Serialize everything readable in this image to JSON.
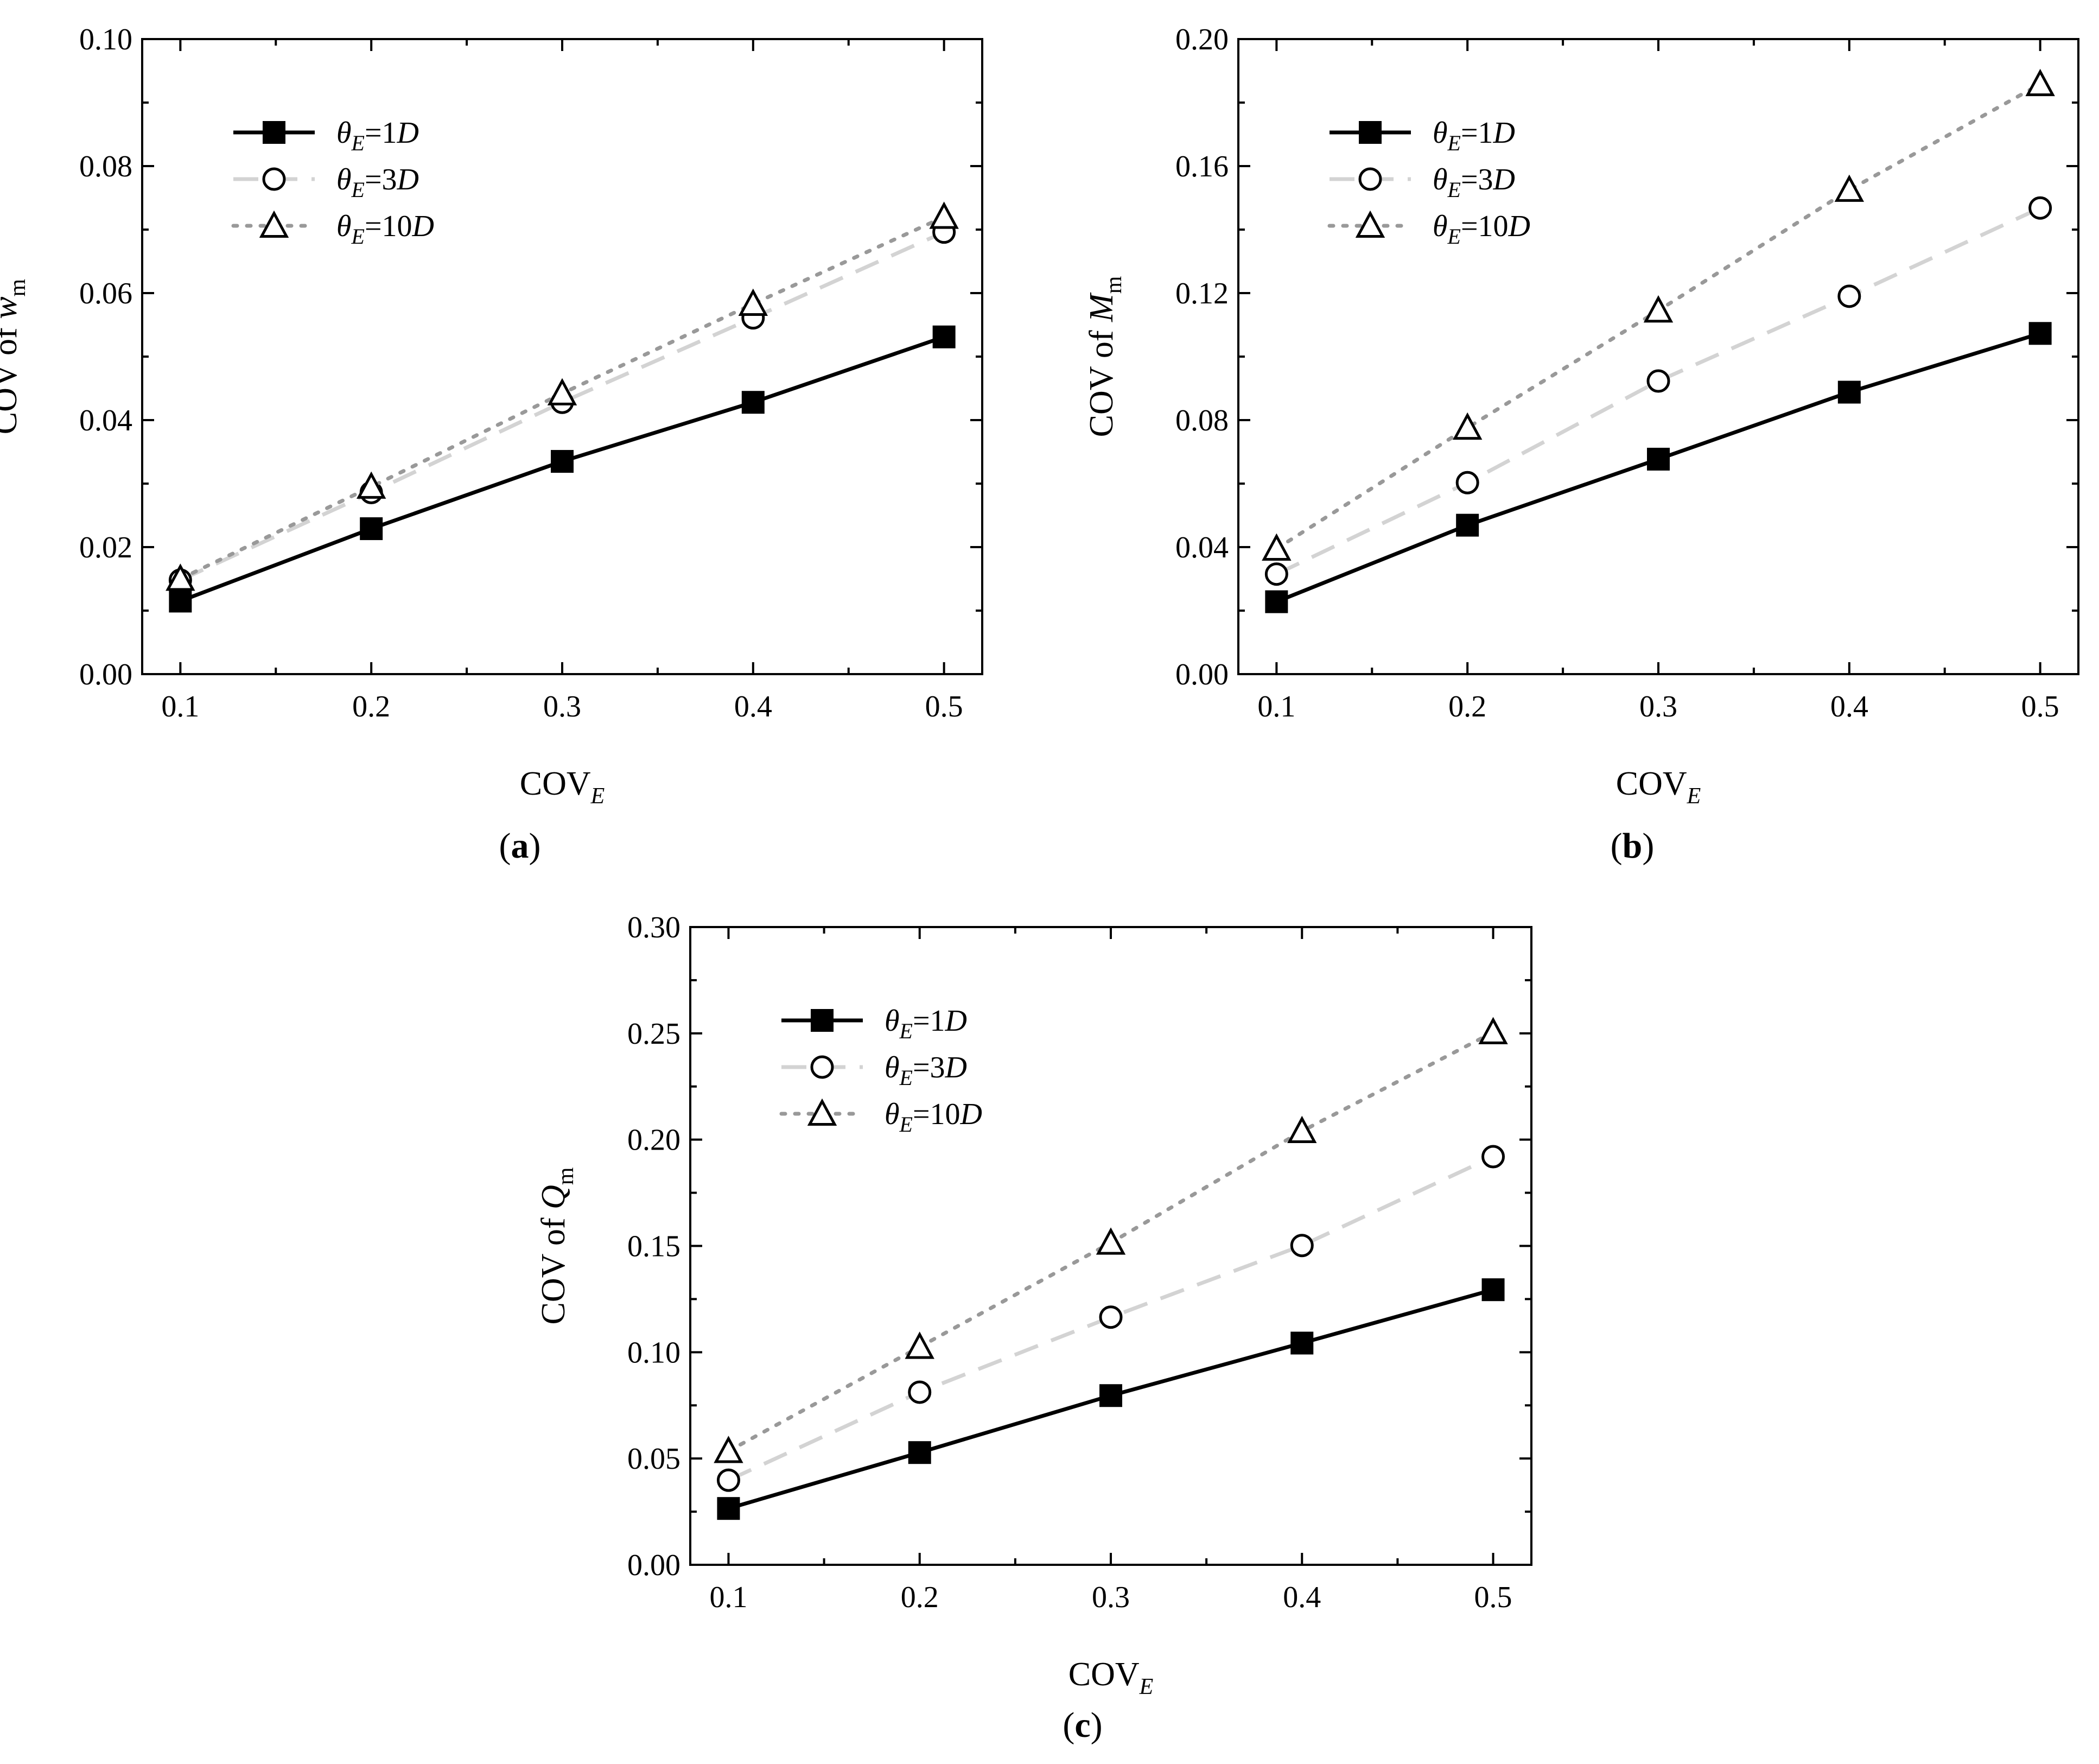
{
  "colors": {
    "series_1D": "#000000",
    "series_3D": "#d3d3d3",
    "series_10D": "#999999"
  },
  "chart_data": [
    {
      "type": "line",
      "caption": {
        "letter": "a"
      },
      "x": [
        0.1,
        0.2,
        0.3,
        0.4,
        0.5
      ],
      "xlabel": {
        "base": "COV",
        "sub": "E"
      },
      "ylabel": {
        "prefix": "COV of ",
        "var": "w",
        "sub": "m"
      },
      "xlim": [
        0.08,
        0.52
      ],
      "ylim": [
        0.0,
        0.1
      ],
      "xticks": [
        "0.1",
        "0.2",
        "0.3",
        "0.4",
        "0.5"
      ],
      "yticks": [
        "0.00",
        "0.02",
        "0.04",
        "0.06",
        "0.08",
        "0.10"
      ],
      "legend_position": "top-left",
      "series": [
        {
          "name": "θE=1D",
          "label": {
            "sym": "θ",
            "sub": "E",
            "eq": "=1",
            "var": "D"
          },
          "marker": "square-filled",
          "line": "solid",
          "values": [
            0.0115,
            0.0229,
            0.0335,
            0.0428,
            0.0531
          ]
        },
        {
          "name": "θE=3D",
          "label": {
            "sym": "θ",
            "sub": "E",
            "eq": "=3",
            "var": "D"
          },
          "marker": "circle-open",
          "line": "dashed",
          "values": [
            0.0148,
            0.0286,
            0.0428,
            0.0561,
            0.0696
          ]
        },
        {
          "name": "θE=10D",
          "label": {
            "sym": "θ",
            "sub": "E",
            "eq": "=10",
            "var": "D"
          },
          "marker": "triangle-open",
          "line": "dotted",
          "values": [
            0.015,
            0.0295,
            0.0442,
            0.0583,
            0.072
          ]
        }
      ]
    },
    {
      "type": "line",
      "caption": {
        "letter": "b"
      },
      "x": [
        0.1,
        0.2,
        0.3,
        0.4,
        0.5
      ],
      "xlabel": {
        "base": "COV",
        "sub": "E"
      },
      "ylabel": {
        "prefix": "COV of ",
        "var": "M",
        "sub": "m"
      },
      "xlim": [
        0.08,
        0.52
      ],
      "ylim": [
        0.0,
        0.2
      ],
      "xticks": [
        "0.1",
        "0.2",
        "0.3",
        "0.4",
        "0.5"
      ],
      "yticks": [
        "0.00",
        "0.04",
        "0.08",
        "0.12",
        "0.16",
        "0.20"
      ],
      "legend_position": "top-left",
      "series": [
        {
          "name": "θE=1D",
          "label": {
            "sym": "θ",
            "sub": "E",
            "eq": "=1",
            "var": "D"
          },
          "marker": "square-filled",
          "line": "solid",
          "values": [
            0.0228,
            0.0469,
            0.0677,
            0.0888,
            0.1073
          ]
        },
        {
          "name": "θE=3D",
          "label": {
            "sym": "θ",
            "sub": "E",
            "eq": "=3",
            "var": "D"
          },
          "marker": "circle-open",
          "line": "dashed",
          "values": [
            0.0315,
            0.0603,
            0.0923,
            0.119,
            0.1468
          ]
        },
        {
          "name": "θE=10D",
          "label": {
            "sym": "θ",
            "sub": "E",
            "eq": "=10",
            "var": "D"
          },
          "marker": "triangle-open",
          "line": "dotted",
          "values": [
            0.0395,
            0.0776,
            0.1145,
            0.1525,
            0.1858
          ]
        }
      ]
    },
    {
      "type": "line",
      "caption": {
        "letter": "c"
      },
      "x": [
        0.1,
        0.2,
        0.3,
        0.4,
        0.5
      ],
      "xlabel": {
        "base": "COV",
        "sub": "E"
      },
      "ylabel": {
        "prefix": "COV of ",
        "var": "Q",
        "sub": "m"
      },
      "xlim": [
        0.08,
        0.52
      ],
      "ylim": [
        0.0,
        0.3
      ],
      "xticks": [
        "0.1",
        "0.2",
        "0.3",
        "0.4",
        "0.5"
      ],
      "yticks": [
        "0.00",
        "0.05",
        "0.10",
        "0.15",
        "0.20",
        "0.25",
        "0.30"
      ],
      "legend_position": "top-left",
      "series": [
        {
          "name": "θE=1D",
          "label": {
            "sym": "θ",
            "sub": "E",
            "eq": "=1",
            "var": "D"
          },
          "marker": "square-filled",
          "line": "solid",
          "values": [
            0.0265,
            0.0528,
            0.0796,
            0.1043,
            0.1294
          ]
        },
        {
          "name": "θE=3D",
          "label": {
            "sym": "θ",
            "sub": "E",
            "eq": "=3",
            "var": "D"
          },
          "marker": "circle-open",
          "line": "dashed",
          "values": [
            0.0398,
            0.0812,
            0.1165,
            0.1502,
            0.192
          ]
        },
        {
          "name": "θE=10D",
          "label": {
            "sym": "θ",
            "sub": "E",
            "eq": "=10",
            "var": "D"
          },
          "marker": "triangle-open",
          "line": "dotted",
          "values": [
            0.0535,
            0.1025,
            0.1515,
            0.204,
            0.2505
          ]
        }
      ]
    }
  ]
}
